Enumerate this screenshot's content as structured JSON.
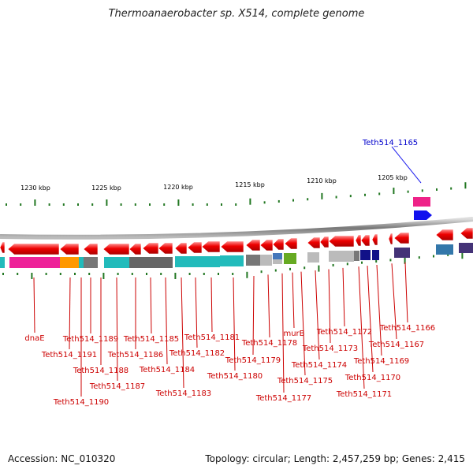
{
  "title": "Thermoanaerobacter sp. X514, complete genome",
  "footer": {
    "accession": "Accession: NC_010320",
    "summary": "Topology: circular; Length: 2,457,259 bp; Genes: 2,415"
  },
  "highlight": {
    "label": "Teth514_1165",
    "color": "#0000cc"
  },
  "ticks": [
    {
      "label": "1230 kbp"
    },
    {
      "label": "1225 kbp"
    },
    {
      "label": "1220 kbp"
    },
    {
      "label": "1215 kbp"
    },
    {
      "label": "1210 kbp"
    },
    {
      "label": "1205 kbp"
    }
  ],
  "gene_labels": [
    {
      "name": "dnaE"
    },
    {
      "name": "Teth514_1191"
    },
    {
      "name": "Teth514_1190"
    },
    {
      "name": "Teth514_1189"
    },
    {
      "name": "Teth514_1188"
    },
    {
      "name": "Teth514_1187"
    },
    {
      "name": "Teth514_1186"
    },
    {
      "name": "Teth514_1185"
    },
    {
      "name": "Teth514_1184"
    },
    {
      "name": "Teth514_1183"
    },
    {
      "name": "Teth514_1182"
    },
    {
      "name": "Teth514_1181"
    },
    {
      "name": "Teth514_1180"
    },
    {
      "name": "Teth514_1179"
    },
    {
      "name": "Teth514_1178"
    },
    {
      "name": "Teth514_1177"
    },
    {
      "name": "murB"
    },
    {
      "name": "Teth514_1175"
    },
    {
      "name": "Teth514_1174"
    },
    {
      "name": "Teth514_1173"
    },
    {
      "name": "Teth514_1172"
    },
    {
      "name": "Teth514_1171"
    },
    {
      "name": "Teth514_1170"
    },
    {
      "name": "Teth514_1169"
    },
    {
      "name": "Teth514_1167"
    },
    {
      "name": "Teth514_1166"
    }
  ],
  "colors": {
    "gene": "#ee0000",
    "label": "#cc0000",
    "tick": "#227722",
    "backbone": "#888888"
  }
}
